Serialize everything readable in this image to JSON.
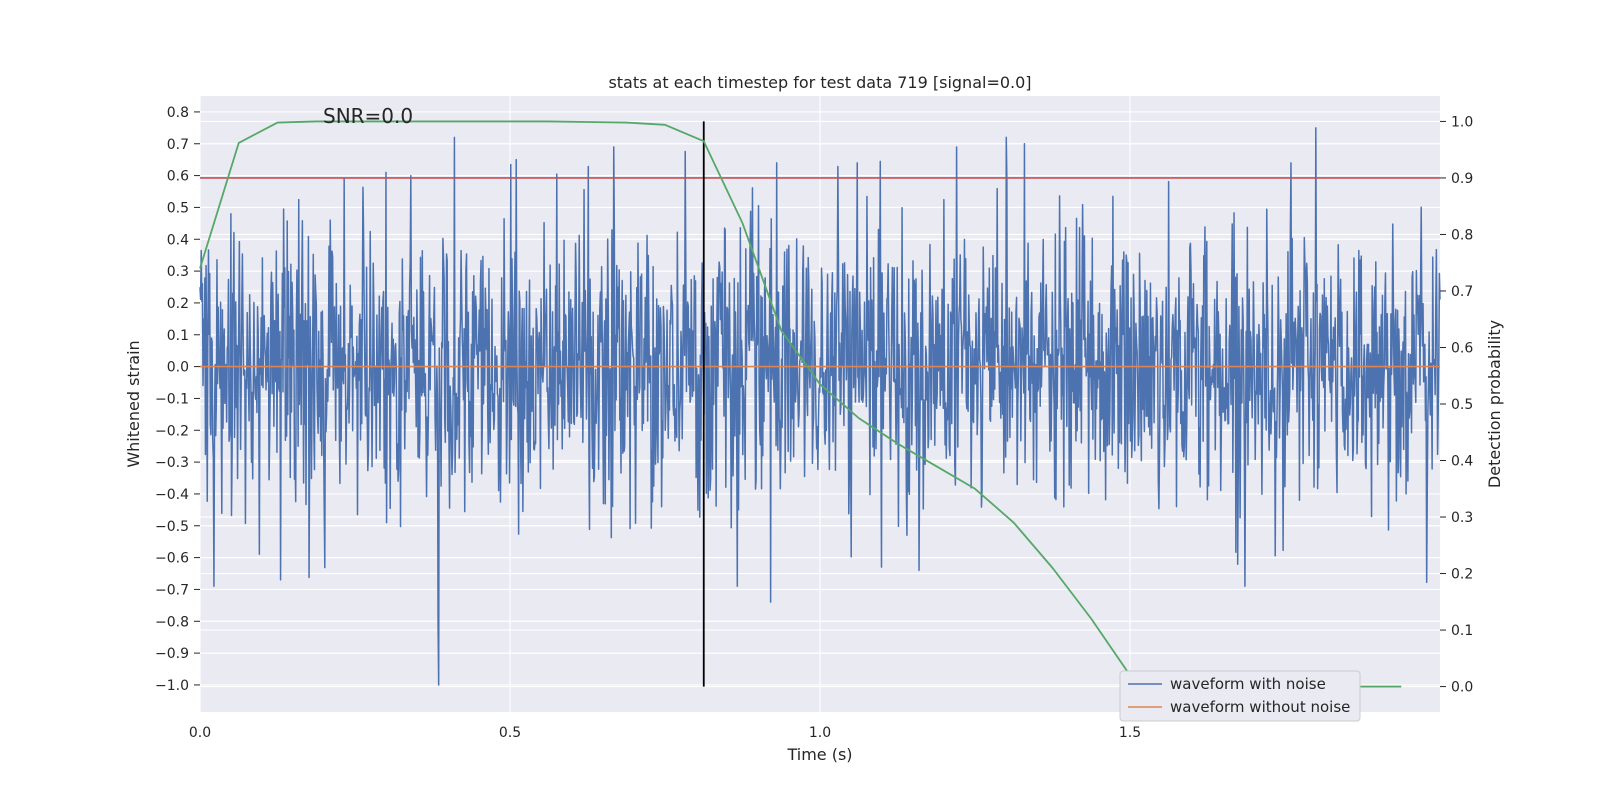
{
  "chart_data": {
    "type": "line",
    "title": "stats at each timestep for test data 719 [signal=0.0]",
    "annotation": "SNR=0.0",
    "xlabel": "Time (s)",
    "ylabel": "Whitened strain",
    "y2label": "Detection probability",
    "xlim": [
      0.0,
      2.0
    ],
    "ylim": [
      -1.085,
      0.85
    ],
    "y2lim": [
      -0.045,
      1.045
    ],
    "x_ticks": [
      0.0,
      0.5,
      1.0,
      1.5
    ],
    "x_tick_labels": [
      "0.0",
      "0.5",
      "1.0",
      "1.5"
    ],
    "y_ticks": [
      -1.0,
      -0.9,
      -0.8,
      -0.7,
      -0.6,
      -0.5,
      -0.4,
      -0.3,
      -0.2,
      -0.1,
      0.0,
      0.1,
      0.2,
      0.3,
      0.4,
      0.5,
      0.6,
      0.7,
      0.8
    ],
    "y_tick_labels": [
      "−1.0",
      "−0.9",
      "−0.8",
      "−0.7",
      "−0.6",
      "−0.5",
      "−0.4",
      "−0.3",
      "−0.2",
      "−0.1",
      "0.0",
      "0.1",
      "0.2",
      "0.3",
      "0.4",
      "0.5",
      "0.6",
      "0.7",
      "0.8"
    ],
    "y2_ticks": [
      0.0,
      0.1,
      0.2,
      0.3,
      0.4,
      0.5,
      0.6,
      0.7,
      0.8,
      0.9,
      1.0
    ],
    "y2_tick_labels": [
      "0.0",
      "0.1",
      "0.2",
      "0.3",
      "0.4",
      "0.5",
      "0.6",
      "0.7",
      "0.8",
      "0.9",
      "1.0"
    ],
    "grid": true,
    "legend_position": "lower-right",
    "series": [
      {
        "name": "waveform with noise",
        "axis": "left",
        "color": "#4c72b0",
        "kind": "noise",
        "std": 0.21,
        "seed": 719,
        "n": 2048,
        "spikes": [
          [
            0.384,
            -0.81
          ],
          [
            0.385,
            -1.0
          ],
          [
            0.41,
            0.72
          ],
          [
            0.34,
            0.6
          ],
          [
            0.3,
            0.61
          ],
          [
            0.51,
            0.65
          ],
          [
            0.93,
            0.64
          ],
          [
            1.06,
            0.64
          ],
          [
            1.22,
            0.69
          ],
          [
            1.3,
            0.72
          ],
          [
            1.33,
            0.7
          ],
          [
            1.8,
            0.75
          ],
          [
            1.76,
            0.64
          ],
          [
            0.13,
            -0.67
          ],
          [
            0.92,
            -0.74
          ],
          [
            1.16,
            -0.64
          ],
          [
            0.21,
            0.46
          ],
          [
            0.05,
            0.48
          ]
        ]
      },
      {
        "name": "waveform without noise",
        "axis": "left",
        "color": "#dd8452",
        "x": [
          0.0,
          2.0
        ],
        "y": [
          0.0,
          0.0
        ]
      },
      {
        "name": "",
        "axis": "right",
        "color": "#55a868",
        "x": [
          0.0,
          0.0625,
          0.125,
          0.1875,
          0.25,
          0.3125,
          0.375,
          0.4375,
          0.5,
          0.5625,
          0.625,
          0.6875,
          0.75,
          0.8125,
          0.875,
          0.9375,
          1.0,
          1.0625,
          1.125,
          1.1875,
          1.25,
          1.3125,
          1.375,
          1.4375,
          1.5,
          1.5625,
          1.625,
          1.6875,
          1.75,
          1.8125,
          1.875,
          1.9375
        ],
        "y": [
          0.74,
          0.962,
          0.998,
          1.0,
          1.0,
          1.0,
          1.0,
          1.0,
          1.0,
          1.0,
          0.999,
          0.998,
          0.994,
          0.965,
          0.82,
          0.63,
          0.535,
          0.475,
          0.43,
          0.39,
          0.35,
          0.29,
          0.21,
          0.12,
          0.02,
          0.002,
          0.001,
          0.0,
          0.0,
          0.0,
          0.0,
          0.0
        ]
      }
    ],
    "reference_lines": [
      {
        "orientation": "horizontal",
        "axis": "right",
        "value": 0.9,
        "color": "#c44e52"
      },
      {
        "orientation": "vertical",
        "value": 0.8125,
        "y2_range": [
          0.0,
          1.0
        ],
        "color": "#000000"
      }
    ]
  },
  "colors": {
    "plot_background": "#eaeaf2",
    "grid": "#ffffff",
    "legend_background": "#eaeaf2",
    "legend_border": "#cccccc"
  }
}
